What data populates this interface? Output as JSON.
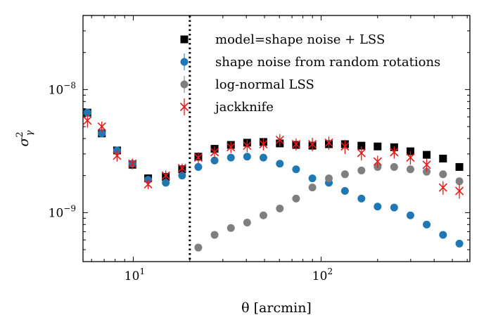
{
  "chart_data": {
    "type": "scatter",
    "title": "",
    "xlabel": "θ [arcmin]",
    "ylabel": "σ²γ",
    "xscale": "log",
    "yscale": "log",
    "xlim": [
      5.4,
      620
    ],
    "ylim": [
      4e-10,
      4e-08
    ],
    "x_ticks": [
      {
        "value": 10,
        "base": "10",
        "exp": "1"
      },
      {
        "value": 100,
        "base": "10",
        "exp": "2"
      }
    ],
    "y_ticks": [
      {
        "value": 1e-09,
        "base": "10",
        "exp": "−9"
      },
      {
        "value": 1e-08,
        "base": "10",
        "exp": "−8"
      }
    ],
    "vline": {
      "x": 20,
      "style": "dotted"
    },
    "x": [
      5.7,
      6.8,
      8.2,
      9.9,
      12.0,
      14.9,
      18.2,
      22.2,
      27.1,
      33.1,
      40.4,
      49.3,
      60.3,
      73.6,
      89.9,
      110,
      134,
      164,
      200,
      245,
      299,
      365,
      446,
      545
    ],
    "series": [
      {
        "name": "model=shape noise + LSS",
        "marker": "square",
        "color": "#000000",
        "values": [
          6.5e-09,
          4.4e-09,
          3.2e-09,
          2.45e-09,
          1.9e-09,
          1.95e-09,
          2.25e-09,
          2.85e-09,
          3.3e-09,
          3.55e-09,
          3.7e-09,
          3.75e-09,
          3.65e-09,
          3.55e-09,
          3.5e-09,
          3.6e-09,
          3.6e-09,
          3.5e-09,
          3.45e-09,
          3.4e-09,
          3.15e-09,
          2.95e-09,
          2.75e-09,
          2.35e-09
        ]
      },
      {
        "name": "shape noise from random rotations",
        "marker": "circle",
        "color": "#1f77b4",
        "values": [
          6.5e-09,
          4.4e-09,
          3.2e-09,
          2.5e-09,
          1.85e-09,
          1.75e-09,
          2e-09,
          2.35e-09,
          2.65e-09,
          2.8e-09,
          2.85e-09,
          2.8e-09,
          2.5e-09,
          2.25e-09,
          1.9e-09,
          1.75e-09,
          1.5e-09,
          1.3e-09,
          1.12e-09,
          1.1e-09,
          9.5e-10,
          8e-10,
          6.6e-10,
          5.6e-10
        ]
      },
      {
        "name": "log-normal LSS",
        "marker": "circle",
        "color": "#7f7f7f",
        "x": [
          22.2,
          27.1,
          33.1,
          40.4,
          49.3,
          60.3,
          73.6,
          89.9,
          110,
          134,
          164,
          200,
          245,
          299,
          365,
          446,
          545
        ],
        "values": [
          5.2e-10,
          6.6e-10,
          7.5e-10,
          8.3e-10,
          9.5e-10,
          1.08e-09,
          1.3e-09,
          1.6e-09,
          1.9e-09,
          2.05e-09,
          2.2e-09,
          2.35e-09,
          2.35e-09,
          2.25e-09,
          2.15e-09,
          2.05e-09,
          1.8e-09
        ]
      },
      {
        "name": "jackknife",
        "marker": "x",
        "color": "#e31a1c",
        "values": [
          5.6e-09,
          5e-09,
          2.9e-09,
          2.5e-09,
          1.7e-09,
          2e-09,
          2.3e-09,
          2.8e-09,
          3.1e-09,
          3.4e-09,
          3.5e-09,
          3.6e-09,
          3.9e-09,
          3.6e-09,
          3.6e-09,
          3.7e-09,
          3.45e-09,
          3.05e-09,
          2.6e-09,
          3.1e-09,
          2.8e-09,
          2.45e-09,
          1.6e-09,
          1.5e-09
        ],
        "err_low": [
          4.9e-09,
          4.5e-09,
          2.6e-09,
          2.25e-09,
          1.55e-09,
          1.8e-09,
          2.1e-09,
          2.5e-09,
          2.75e-09,
          3.05e-09,
          3.1e-09,
          3.2e-09,
          3.45e-09,
          3.2e-09,
          3.15e-09,
          3.25e-09,
          3e-09,
          2.65e-09,
          2.3e-09,
          2.75e-09,
          2.45e-09,
          2.15e-09,
          1.4e-09,
          1.3e-09
        ],
        "err_high": [
          6.3e-09,
          5.5e-09,
          3.2e-09,
          2.75e-09,
          1.85e-09,
          2.2e-09,
          2.5e-09,
          3.1e-09,
          3.45e-09,
          3.75e-09,
          3.9e-09,
          4e-09,
          4.35e-09,
          4e-09,
          4.05e-09,
          4.15e-09,
          3.9e-09,
          3.45e-09,
          2.9e-09,
          3.45e-09,
          3.15e-09,
          2.75e-09,
          1.8e-09,
          1.7e-09
        ]
      }
    ],
    "legend": {
      "position": "top-right"
    }
  }
}
